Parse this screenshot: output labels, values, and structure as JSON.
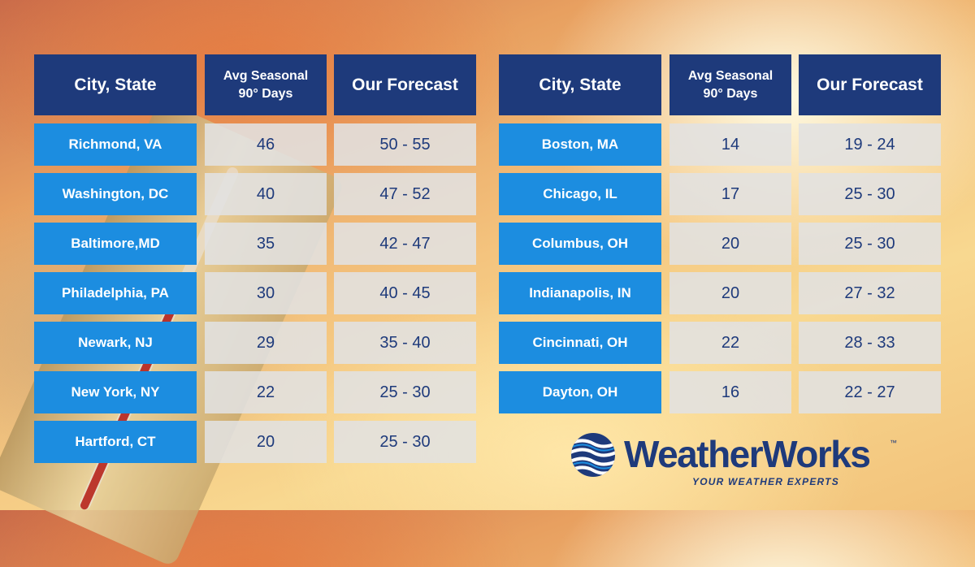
{
  "left_table": {
    "headers": [
      "City, State",
      "Avg Seasonal",
      "90° Days",
      "Our Forecast"
    ],
    "rows": [
      {
        "city": "Richmond, VA",
        "avg": "46",
        "forecast": "50 - 55"
      },
      {
        "city": "Washington, DC",
        "avg": "40",
        "forecast": "47 - 52"
      },
      {
        "city": "Baltimore,MD",
        "avg": "35",
        "forecast": "42 - 47"
      },
      {
        "city": "Philadelphia, PA",
        "avg": "30",
        "forecast": "40 - 45"
      },
      {
        "city": "Newark, NJ",
        "avg": "29",
        "forecast": "35 - 40"
      },
      {
        "city": "New York, NY",
        "avg": "22",
        "forecast": "25 - 30"
      },
      {
        "city": "Hartford, CT",
        "avg": "20",
        "forecast": "25 - 30"
      }
    ]
  },
  "right_table": {
    "headers": [
      "City, State",
      "Avg Seasonal",
      "90° Days",
      "Our Forecast"
    ],
    "rows": [
      {
        "city": "Boston, MA",
        "avg": "14",
        "forecast": "19 - 24"
      },
      {
        "city": "Chicago, IL",
        "avg": "17",
        "forecast": "25 - 30"
      },
      {
        "city": "Columbus, OH",
        "avg": "20",
        "forecast": "25 - 30"
      },
      {
        "city": "Indianapolis, IN",
        "avg": "20",
        "forecast": "27 - 32"
      },
      {
        "city": "Cincinnati, OH",
        "avg": "22",
        "forecast": "28 - 33"
      },
      {
        "city": "Dayton, OH",
        "avg": "16",
        "forecast": "22 - 27"
      }
    ]
  },
  "logo": {
    "name": "WeatherWorks",
    "tm": "™",
    "tagline": "YOUR WEATHER EXPERTS"
  },
  "colors": {
    "header_bg": "#1e3a7b",
    "city_bg": "#1c8de0",
    "value_text": "#1e3a7b"
  },
  "icons": [
    "globe-logo-icon",
    "thermometer-image"
  ]
}
